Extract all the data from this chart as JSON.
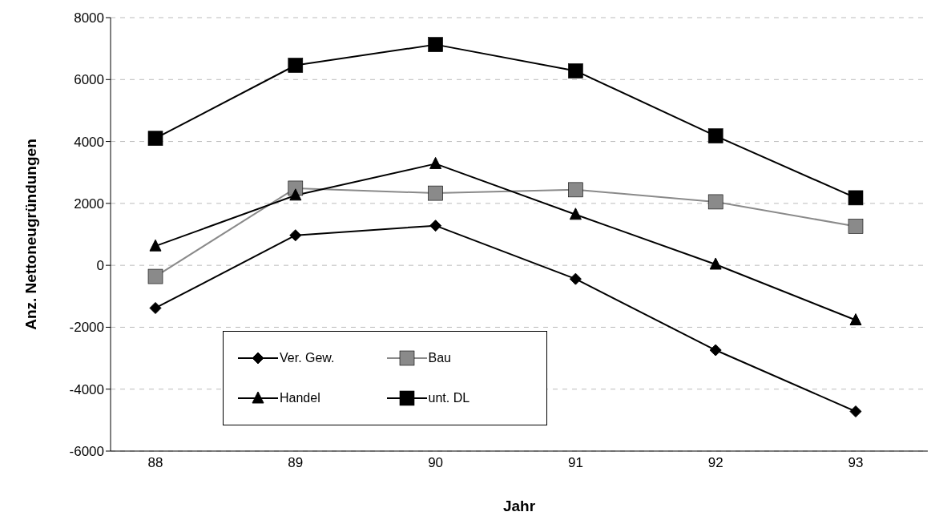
{
  "chart_data": {
    "type": "line",
    "xlabel": "Jahr",
    "ylabel": "Anz. Nettoneugründungen",
    "categories": [
      "88",
      "89",
      "90",
      "91",
      "92",
      "93"
    ],
    "ylim": [
      -6000,
      8000
    ],
    "yticks": [
      -6000,
      -4000,
      -2000,
      0,
      2000,
      4000,
      6000,
      8000
    ],
    "grid": "y",
    "legend": "bottom left",
    "line_style": "solid",
    "series": [
      {
        "name": "Ver. Gew.",
        "color": "#000000",
        "marker": "diamond",
        "values": [
          -1380,
          970,
          1280,
          -440,
          -2740,
          -4720
        ]
      },
      {
        "name": "Bau",
        "color": "#8a8a8a",
        "marker": "square",
        "values": [
          -360,
          2490,
          2330,
          2440,
          2050,
          1260
        ]
      },
      {
        "name": "Handel",
        "color": "#000000",
        "marker": "triangle",
        "values": [
          620,
          2260,
          3280,
          1640,
          30,
          -1770
        ]
      },
      {
        "name": "unt. DL",
        "color": "#000000",
        "marker": "square",
        "values": [
          4100,
          6460,
          7130,
          6280,
          4180,
          2180
        ]
      }
    ]
  }
}
